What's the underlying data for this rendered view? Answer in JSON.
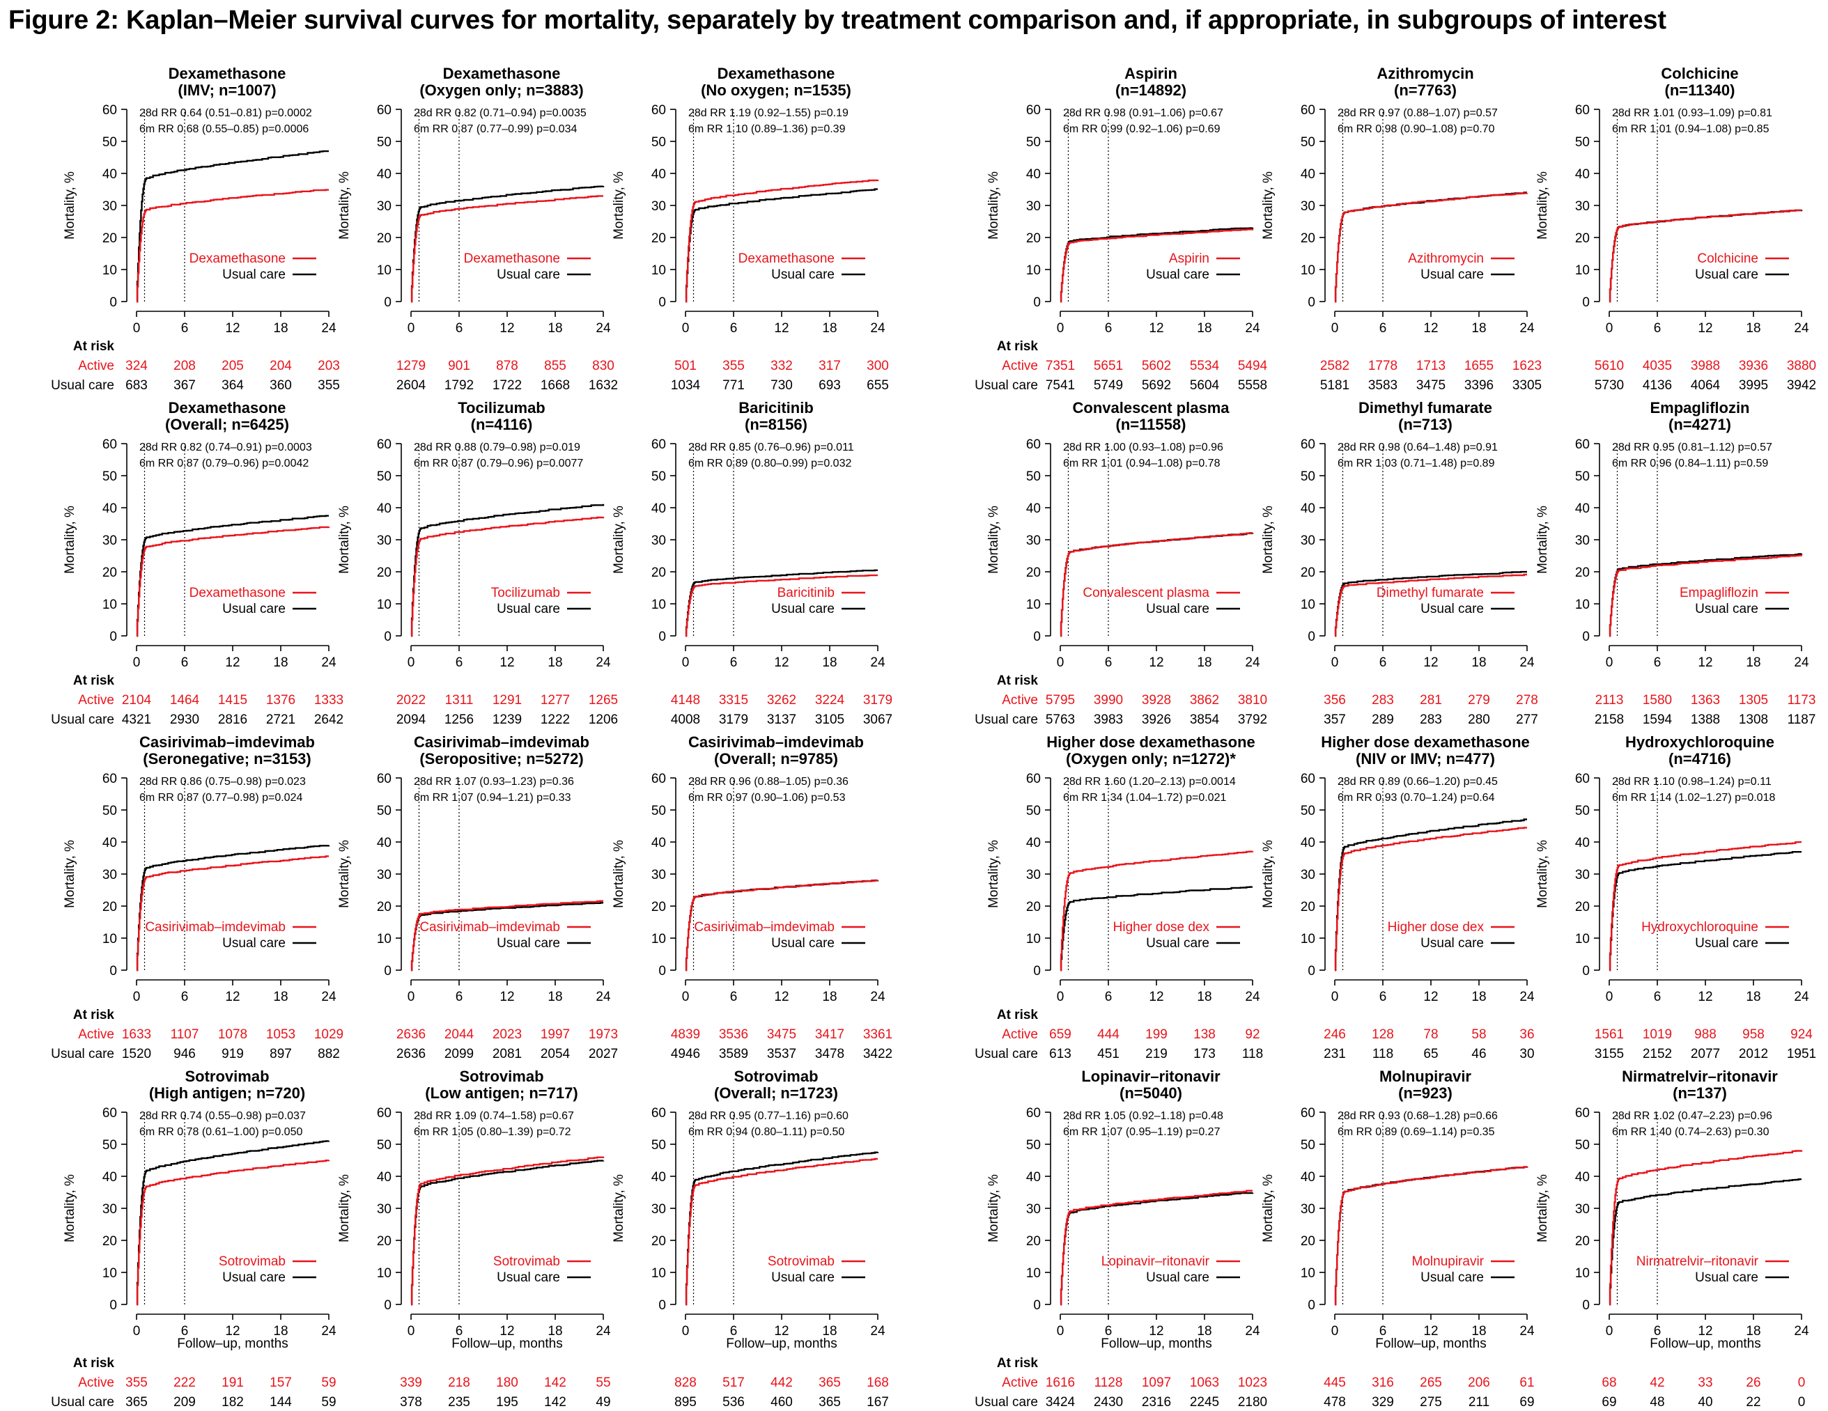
{
  "figure_title": "Figure 2: Kaplan–Meier survival curves for mortality, separately by treatment comparison and, if appropriate, in subgroups of interest",
  "colors": {
    "active": "#e8141b",
    "usual": "#000000"
  },
  "labels": {
    "y_axis": "Mortality, %",
    "x_axis": "Follow–up, months",
    "at_risk": "At risk",
    "active_row": "Active",
    "usual_row": "Usual care",
    "usual_legend": "Usual care"
  },
  "chart_data": {
    "type": "line",
    "xlim": [
      0,
      24
    ],
    "ylim": [
      0,
      60
    ],
    "x_ticks": [
      0,
      6,
      12,
      18,
      24
    ],
    "y_ticks": [
      0,
      10,
      20,
      30,
      40,
      50,
      60
    ],
    "reference_lines_months": [
      1,
      6
    ],
    "panels": [
      {
        "title1": "Dexamethasone",
        "title2": "(IMV; n=1007)",
        "rr28": "28d RR 0.64 (0.51–0.81)  p=0.0002",
        "rr6": "6m RR 0.68 (0.55–0.85)  p=0.0006",
        "legend": "Dexamethasone",
        "active_end": 35,
        "usual_end": 47,
        "active_risk": [
          "324",
          "208",
          "205",
          "204",
          "203"
        ],
        "usual_risk": [
          "683",
          "367",
          "364",
          "360",
          "355"
        ]
      },
      {
        "title1": "Dexamethasone",
        "title2": "(Oxygen only; n=3883)",
        "rr28": "28d RR 0.82 (0.71–0.94)  p=0.0035",
        "rr6": "6m RR 0.87 (0.77–0.99)  p=0.034",
        "legend": "Dexamethasone",
        "active_end": 33,
        "usual_end": 36,
        "active_risk": [
          "1279",
          "901",
          "878",
          "855",
          "830"
        ],
        "usual_risk": [
          "2604",
          "1792",
          "1722",
          "1668",
          "1632"
        ]
      },
      {
        "title1": "Dexamethasone",
        "title2": "(No oxygen; n=1535)",
        "rr28": "28d RR 1.19 (0.92–1.55)  p=0.19",
        "rr6": "6m RR 1.10 (0.89–1.36)  p=0.39",
        "legend": "Dexamethasone",
        "active_end": 38,
        "usual_end": 35,
        "active_risk": [
          "501",
          "355",
          "332",
          "317",
          "300"
        ],
        "usual_risk": [
          "1034",
          "771",
          "730",
          "693",
          "655"
        ]
      },
      {
        "title1": "Aspirin",
        "title2": "(n=14892)",
        "rr28": "28d RR 0.98 (0.91–1.06)  p=0.67",
        "rr6": "6m RR 0.99 (0.92–1.06)  p=0.69",
        "legend": "Aspirin",
        "active_end": 22.5,
        "usual_end": 23,
        "active_risk": [
          "7351",
          "5651",
          "5602",
          "5534",
          "5494"
        ],
        "usual_risk": [
          "7541",
          "5749",
          "5692",
          "5604",
          "5558"
        ]
      },
      {
        "title1": "Azithromycin",
        "title2": "(n=7763)",
        "rr28": "28d RR 0.97 (0.88–1.07)  p=0.57",
        "rr6": "6m RR 0.98 (0.90–1.08)  p=0.70",
        "legend": "Azithromycin",
        "active_end": 34,
        "usual_end": 34,
        "active_risk": [
          "2582",
          "1778",
          "1713",
          "1655",
          "1623"
        ],
        "usual_risk": [
          "5181",
          "3583",
          "3475",
          "3396",
          "3305"
        ]
      },
      {
        "title1": "Colchicine",
        "title2": "(n=11340)",
        "rr28": "28d RR 1.01 (0.93–1.09)  p=0.81",
        "rr6": "6m RR 1.01 (0.94–1.08)  p=0.85",
        "legend": "Colchicine",
        "active_end": 28.5,
        "usual_end": 28.5,
        "active_risk": [
          "5610",
          "4035",
          "3988",
          "3936",
          "3880"
        ],
        "usual_risk": [
          "5730",
          "4136",
          "4064",
          "3995",
          "3942"
        ]
      },
      {
        "title1": "Dexamethasone",
        "title2": "(Overall; n=6425)",
        "rr28": "28d RR 0.82 (0.74–0.91)  p=0.0003",
        "rr6": "6m RR 0.87 (0.79–0.96)  p=0.0042",
        "legend": "Dexamethasone",
        "active_end": 34,
        "usual_end": 37.5,
        "active_risk": [
          "2104",
          "1464",
          "1415",
          "1376",
          "1333"
        ],
        "usual_risk": [
          "4321",
          "2930",
          "2816",
          "2721",
          "2642"
        ]
      },
      {
        "title1": "Tocilizumab",
        "title2": "(n=4116)",
        "rr28": "28d RR 0.88 (0.79–0.98)  p=0.019",
        "rr6": "6m RR 0.87 (0.79–0.96)  p=0.0077",
        "legend": "Tocilizumab",
        "active_end": 37,
        "usual_end": 41,
        "active_risk": [
          "2022",
          "1311",
          "1291",
          "1277",
          "1265"
        ],
        "usual_risk": [
          "2094",
          "1256",
          "1239",
          "1222",
          "1206"
        ]
      },
      {
        "title1": "Baricitinib",
        "title2": "(n=8156)",
        "rr28": "28d RR 0.85 (0.76–0.96)  p=0.011",
        "rr6": "6m RR 0.89 (0.80–0.99)  p=0.032",
        "legend": "Baricitinib",
        "active_end": 19,
        "usual_end": 20.5,
        "active_risk": [
          "4148",
          "3315",
          "3262",
          "3224",
          "3179"
        ],
        "usual_risk": [
          "4008",
          "3179",
          "3137",
          "3105",
          "3067"
        ]
      },
      {
        "title1": "Convalescent plasma",
        "title2": "(n=11558)",
        "rr28": "28d RR 1.00 (0.93–1.08)  p=0.96",
        "rr6": "6m RR 1.01 (0.94–1.08)  p=0.78",
        "legend": "Convalescent plasma",
        "active_end": 32,
        "usual_end": 32,
        "active_risk": [
          "5795",
          "3990",
          "3928",
          "3862",
          "3810"
        ],
        "usual_risk": [
          "5763",
          "3983",
          "3926",
          "3854",
          "3792"
        ]
      },
      {
        "title1": "Dimethyl fumarate",
        "title2": "(n=713)",
        "rr28": "28d RR 0.98 (0.64–1.48)  p=0.91",
        "rr6": "6m RR 1.03 (0.71–1.48)  p=0.89",
        "legend": "Dimethyl fumarate",
        "active_end": 19,
        "usual_end": 20,
        "active_risk": [
          "356",
          "283",
          "281",
          "279",
          "278"
        ],
        "usual_risk": [
          "357",
          "289",
          "283",
          "280",
          "277"
        ]
      },
      {
        "title1": "Empagliflozin",
        "title2": "(n=4271)",
        "rr28": "28d RR 0.95 (0.81–1.12)  p=0.57",
        "rr6": "6m RR 0.96 (0.84–1.11)  p=0.59",
        "legend": "Empagliflozin",
        "active_end": 25,
        "usual_end": 25.5,
        "active_risk": [
          "2113",
          "1580",
          "1363",
          "1305",
          "1173"
        ],
        "usual_risk": [
          "2158",
          "1594",
          "1388",
          "1308",
          "1187"
        ]
      },
      {
        "title1": "Casirivimab–imdevimab",
        "title2": "(Seronegative; n=3153)",
        "rr28": "28d RR 0.86 (0.75–0.98)  p=0.023",
        "rr6": "6m RR 0.87 (0.77–0.98)  p=0.024",
        "legend": "Casirivimab–imdevimab",
        "active_end": 35.5,
        "usual_end": 39,
        "active_risk": [
          "1633",
          "1107",
          "1078",
          "1053",
          "1029"
        ],
        "usual_risk": [
          "1520",
          "946",
          "919",
          "897",
          "882"
        ]
      },
      {
        "title1": "Casirivimab–imdevimab",
        "title2": "(Seropositive; n=5272)",
        "rr28": "28d RR 1.07 (0.93–1.23)  p=0.36",
        "rr6": "6m RR 1.07 (0.94–1.21)  p=0.33",
        "legend": "Casirivimab–imdevimab",
        "active_end": 21.5,
        "usual_end": 21,
        "active_risk": [
          "2636",
          "2044",
          "2023",
          "1997",
          "1973"
        ],
        "usual_risk": [
          "2636",
          "2099",
          "2081",
          "2054",
          "2027"
        ]
      },
      {
        "title1": "Casirivimab–imdevimab",
        "title2": "(Overall; n=9785)",
        "rr28": "28d RR 0.96 (0.88–1.05)  p=0.36",
        "rr6": "6m RR 0.97 (0.90–1.06)  p=0.53",
        "legend": "Casirivimab–imdevimab",
        "active_end": 28,
        "usual_end": 28,
        "active_risk": [
          "4839",
          "3536",
          "3475",
          "3417",
          "3361"
        ],
        "usual_risk": [
          "4946",
          "3589",
          "3537",
          "3478",
          "3422"
        ]
      },
      {
        "title1": "Higher dose dexamethasone",
        "title2": "(Oxygen only; n=1272)*",
        "rr28": "28d RR 1.60 (1.20–2.13)  p=0.0014",
        "rr6": "6m RR 1.34 (1.04–1.72)  p=0.021",
        "legend": "Higher dose dex",
        "active_end": 37,
        "usual_end": 26,
        "active_risk": [
          "659",
          "444",
          "199",
          "138",
          "92"
        ],
        "usual_risk": [
          "613",
          "451",
          "219",
          "173",
          "118"
        ]
      },
      {
        "title1": "Higher dose dexamethasone",
        "title2": "(NIV or IMV; n=477)",
        "rr28": "28d RR 0.89 (0.66–1.20)  p=0.45",
        "rr6": "6m RR 0.93 (0.70–1.24)  p=0.64",
        "legend": "Higher dose dex",
        "active_end": 44.5,
        "usual_end": 47,
        "active_risk": [
          "246",
          "128",
          "78",
          "58",
          "36"
        ],
        "usual_risk": [
          "231",
          "118",
          "65",
          "46",
          "30"
        ]
      },
      {
        "title1": "Hydroxychloroquine",
        "title2": "(n=4716)",
        "rr28": "28d RR 1.10 (0.98–1.24)  p=0.11",
        "rr6": "6m RR 1.14 (1.02–1.27)  p=0.018",
        "legend": "Hydroxychloroquine",
        "active_end": 40,
        "usual_end": 37,
        "active_risk": [
          "1561",
          "1019",
          "988",
          "958",
          "924"
        ],
        "usual_risk": [
          "3155",
          "2152",
          "2077",
          "2012",
          "1951"
        ]
      },
      {
        "title1": "Sotrovimab",
        "title2": "(High antigen; n=720)",
        "rr28": "28d RR 0.74 (0.55–0.98)  p=0.037",
        "rr6": "6m RR 0.78 (0.61–1.00)  p=0.050",
        "legend": "Sotrovimab",
        "active_end": 45,
        "usual_end": 51,
        "active_risk": [
          "355",
          "222",
          "191",
          "157",
          "59"
        ],
        "usual_risk": [
          "365",
          "209",
          "182",
          "144",
          "59"
        ]
      },
      {
        "title1": "Sotrovimab",
        "title2": "(Low antigen; n=717)",
        "rr28": "28d RR 1.09 (0.74–1.58)  p=0.67",
        "rr6": "6m RR 1.05 (0.80–1.39)  p=0.72",
        "legend": "Sotrovimab",
        "active_end": 46,
        "usual_end": 45,
        "active_risk": [
          "339",
          "218",
          "180",
          "142",
          "55"
        ],
        "usual_risk": [
          "378",
          "235",
          "195",
          "142",
          "49"
        ]
      },
      {
        "title1": "Sotrovimab",
        "title2": "(Overall; n=1723)",
        "rr28": "28d RR 0.95 (0.77–1.16)  p=0.60",
        "rr6": "6m RR 0.94 (0.80–1.11)  p=0.50",
        "legend": "Sotrovimab",
        "active_end": 45.5,
        "usual_end": 47.5,
        "active_risk": [
          "828",
          "517",
          "442",
          "365",
          "168"
        ],
        "usual_risk": [
          "895",
          "536",
          "460",
          "365",
          "167"
        ]
      },
      {
        "title1": "Lopinavir–ritonavir",
        "title2": "(n=5040)",
        "rr28": "28d RR 1.05 (0.92–1.18)  p=0.48",
        "rr6": "6m RR 1.07 (0.95–1.19)  p=0.27",
        "legend": "Lopinavir–ritonavir",
        "active_end": 35.5,
        "usual_end": 35,
        "active_risk": [
          "1616",
          "1128",
          "1097",
          "1063",
          "1023"
        ],
        "usual_risk": [
          "3424",
          "2430",
          "2316",
          "2245",
          "2180"
        ]
      },
      {
        "title1": "Molnupiravir",
        "title2": "(n=923)",
        "rr28": "28d RR 0.93 (0.68–1.28)  p=0.66",
        "rr6": "6m RR 0.89 (0.69–1.14)  p=0.35",
        "legend": "Molnupiravir",
        "active_end": 43,
        "usual_end": 43,
        "active_risk": [
          "445",
          "316",
          "265",
          "206",
          "61"
        ],
        "usual_risk": [
          "478",
          "329",
          "275",
          "211",
          "69"
        ]
      },
      {
        "title1": "Nirmatrelvir–ritonavir",
        "title2": "(n=137)",
        "rr28": "28d RR 1.02 (0.47–2.23)  p=0.96",
        "rr6": "6m RR 1.40 (0.74–2.63)  p=0.30",
        "legend": "Nirmatrelvir–ritonavir",
        "active_end": 48,
        "usual_end": 39,
        "active_risk": [
          "68",
          "42",
          "33",
          "26",
          "0"
        ],
        "usual_risk": [
          "69",
          "48",
          "40",
          "22",
          "0"
        ]
      }
    ]
  }
}
